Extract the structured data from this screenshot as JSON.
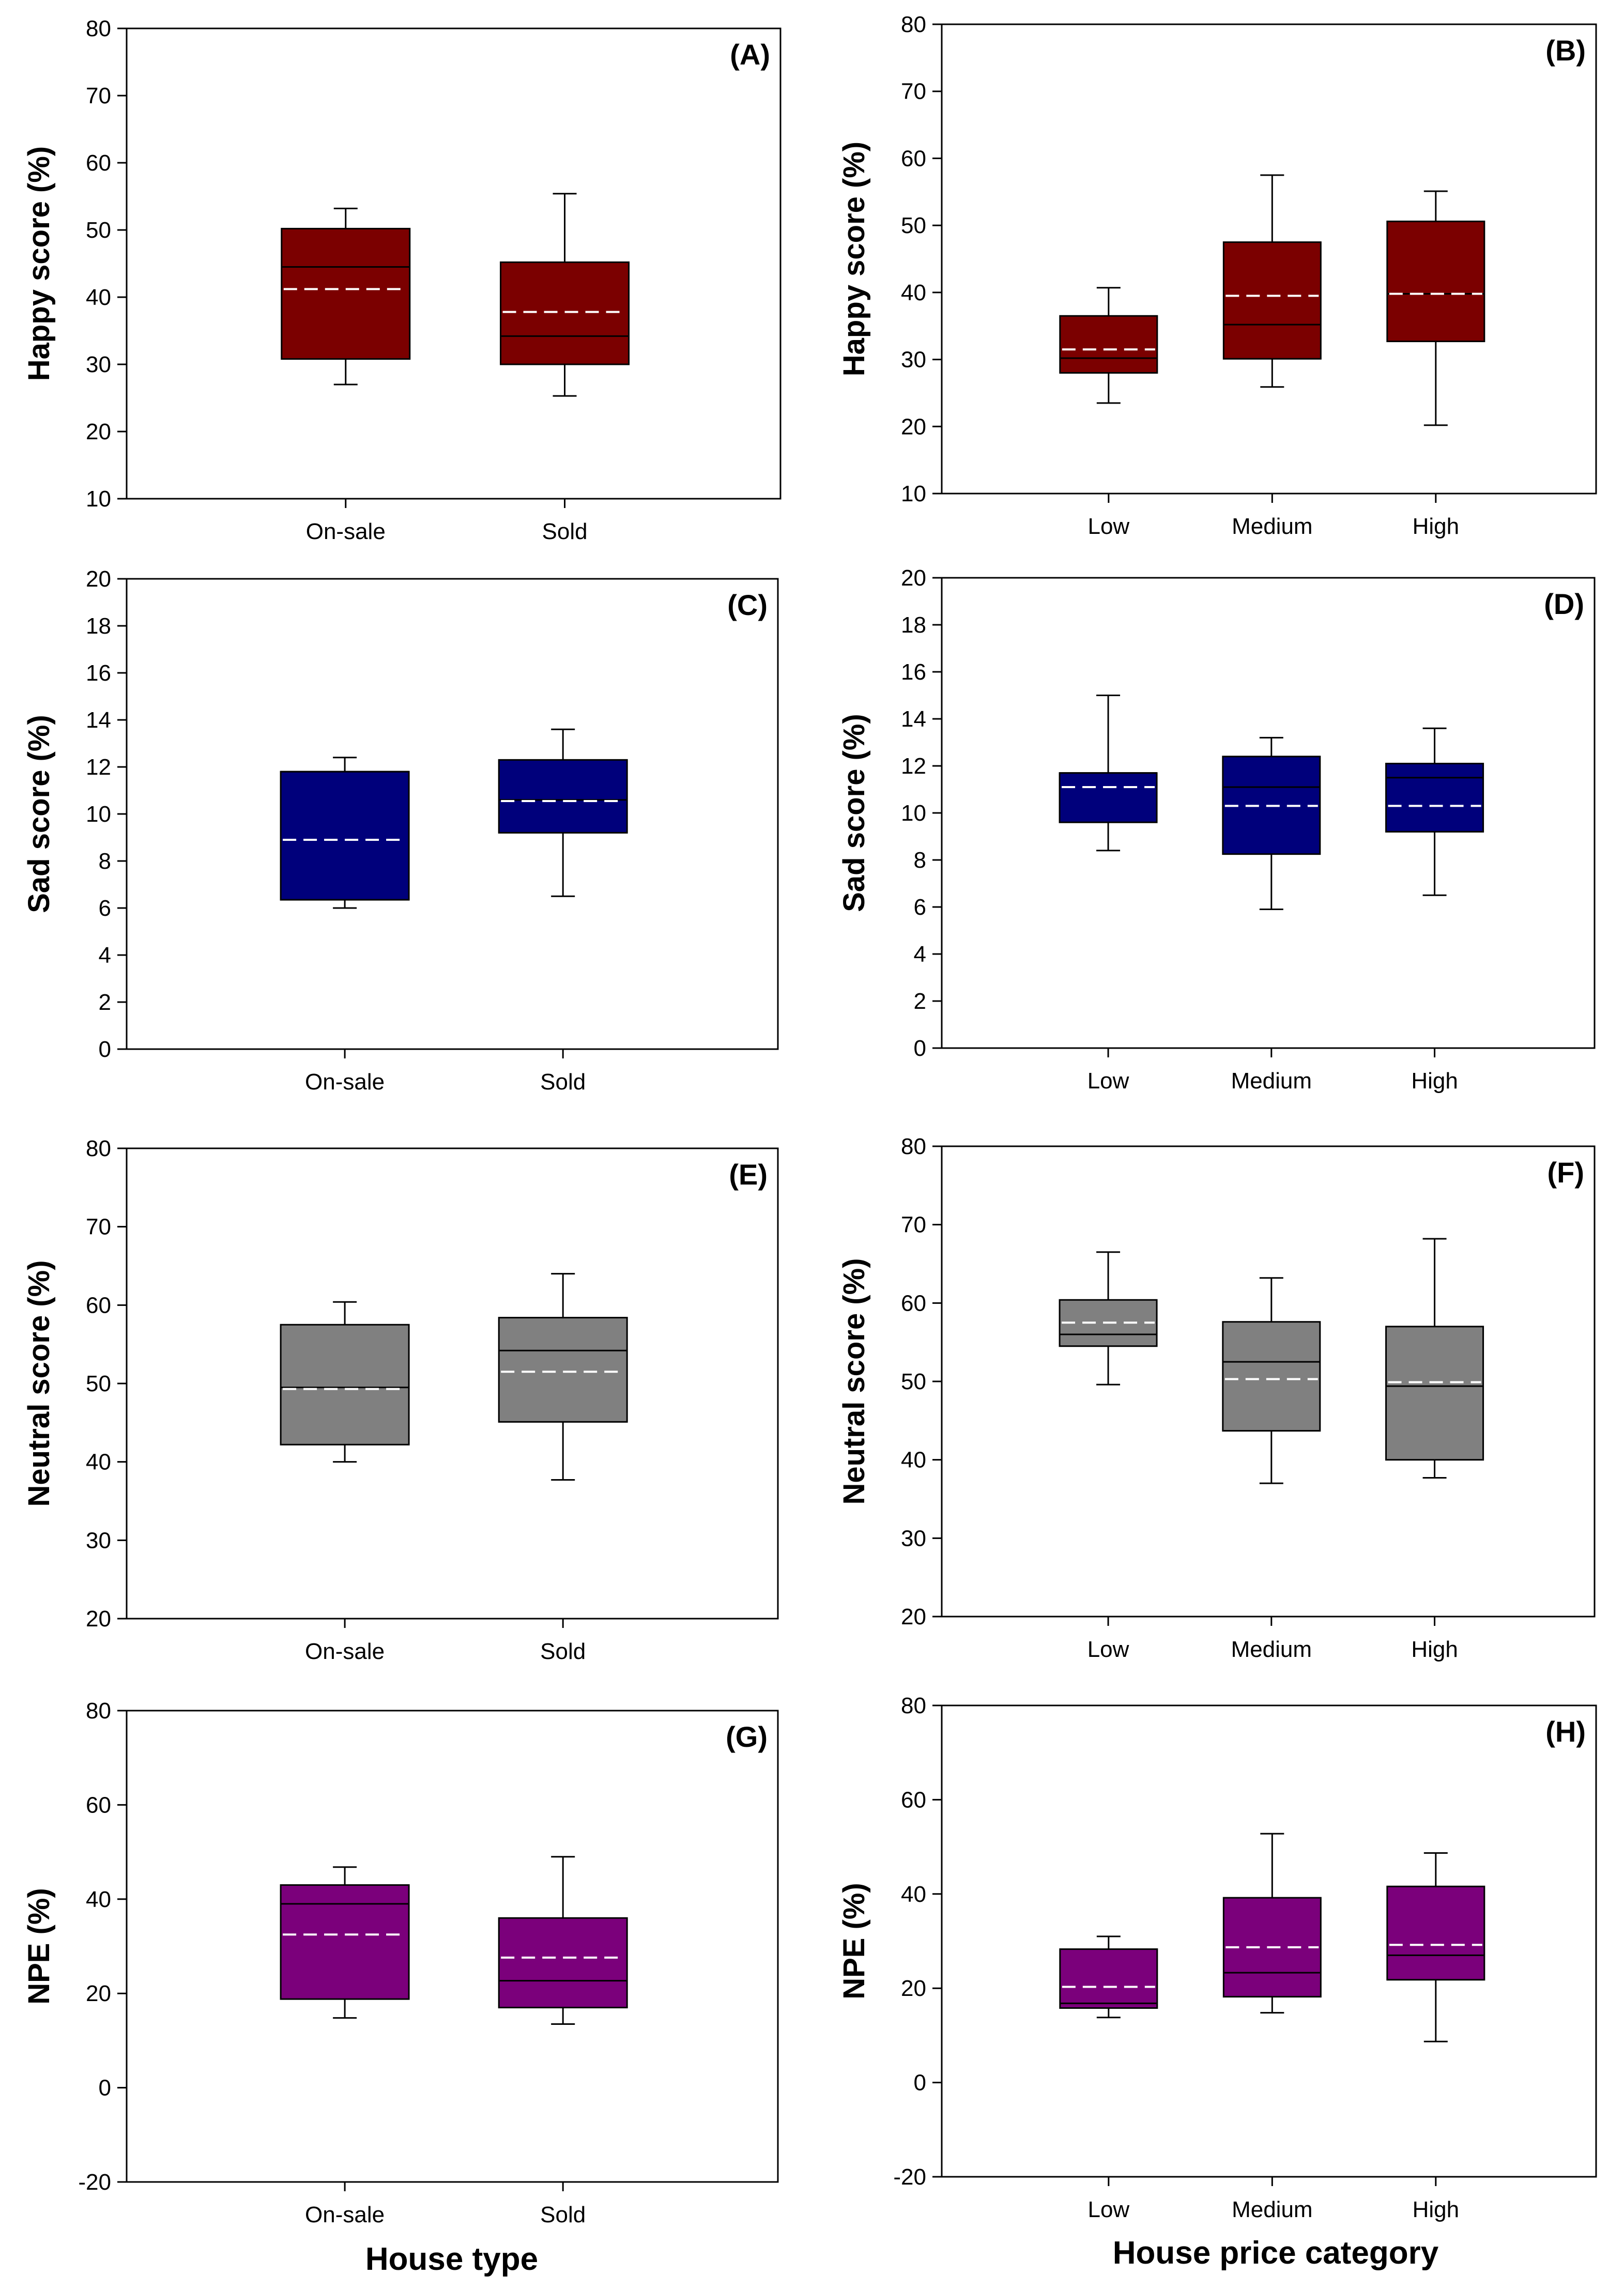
{
  "shared_xlabels": {
    "left": "House type",
    "right": "House price category"
  },
  "chart_data": [
    {
      "id": "A",
      "type": "box",
      "tag": "(A)",
      "ylabel": "Happy score (%)",
      "ylim": [
        10,
        80
      ],
      "yticks": [
        10,
        20,
        30,
        40,
        50,
        60,
        70,
        80
      ],
      "color": "#7b0000",
      "median_color": "#000000",
      "mean_color": "#ffffff",
      "categories": [
        "On-sale",
        "Sold"
      ],
      "boxes": [
        {
          "whisker_low": 27.0,
          "q1": 30.8,
          "median": 44.5,
          "mean": 41.2,
          "q3": 50.2,
          "whisker_high": 53.2
        },
        {
          "whisker_low": 25.3,
          "q1": 30.0,
          "median": 34.2,
          "mean": 37.8,
          "q3": 45.2,
          "whisker_high": 55.4
        }
      ]
    },
    {
      "id": "B",
      "type": "box",
      "tag": "(B)",
      "ylabel": "Happy score (%)",
      "ylim": [
        10,
        80
      ],
      "yticks": [
        10,
        20,
        30,
        40,
        50,
        60,
        70,
        80
      ],
      "color": "#7b0000",
      "median_color": "#000000",
      "mean_color": "#ffffff",
      "categories": [
        "Low",
        "Medium",
        "High"
      ],
      "boxes": [
        {
          "whisker_low": 23.5,
          "q1": 28.0,
          "median": 30.2,
          "mean": 31.5,
          "q3": 36.5,
          "whisker_high": 40.7
        },
        {
          "whisker_low": 25.9,
          "q1": 30.1,
          "median": 35.2,
          "mean": 39.5,
          "q3": 47.5,
          "whisker_high": 57.5
        },
        {
          "whisker_low": 20.2,
          "q1": 32.7,
          "median": 39.8,
          "mean": 39.8,
          "q3": 50.6,
          "whisker_high": 55.1
        }
      ]
    },
    {
      "id": "C",
      "type": "box",
      "tag": "(C)",
      "ylabel": "Sad score (%)",
      "ylim": [
        0,
        20
      ],
      "yticks": [
        0,
        2,
        4,
        6,
        8,
        10,
        12,
        14,
        16,
        18,
        20
      ],
      "color": "#00007b",
      "median_color": "#000000",
      "mean_color": "#ffffff",
      "categories": [
        "On-sale",
        "Sold"
      ],
      "boxes": [
        {
          "whisker_low": 6.0,
          "q1": 6.35,
          "median": 11.8,
          "mean": 8.9,
          "q3": 11.8,
          "whisker_high": 12.4
        },
        {
          "whisker_low": 6.5,
          "q1": 9.2,
          "median": 10.6,
          "mean": 10.55,
          "q3": 12.3,
          "whisker_high": 13.6
        }
      ]
    },
    {
      "id": "D",
      "type": "box",
      "tag": "(D)",
      "ylabel": "Sad score (%)",
      "ylim": [
        0,
        20
      ],
      "yticks": [
        0,
        2,
        4,
        6,
        8,
        10,
        12,
        14,
        16,
        18,
        20
      ],
      "color": "#00007b",
      "median_color": "#000000",
      "mean_color": "#ffffff",
      "categories": [
        "Low",
        "Medium",
        "High"
      ],
      "boxes": [
        {
          "whisker_low": 8.4,
          "q1": 9.6,
          "median": 11.7,
          "mean": 11.1,
          "q3": 11.7,
          "whisker_high": 15.0
        },
        {
          "whisker_low": 5.9,
          "q1": 8.25,
          "median": 11.1,
          "mean": 10.3,
          "q3": 12.4,
          "whisker_high": 13.2
        },
        {
          "whisker_low": 6.5,
          "q1": 9.2,
          "median": 11.5,
          "mean": 10.3,
          "q3": 12.1,
          "whisker_high": 13.6
        }
      ]
    },
    {
      "id": "E",
      "type": "box",
      "tag": "(E)",
      "ylabel": "Neutral score (%)",
      "ylim": [
        20,
        80
      ],
      "yticks": [
        20,
        30,
        40,
        50,
        60,
        70,
        80
      ],
      "color": "#808080",
      "median_color": "#000000",
      "mean_color": "#ffffff",
      "categories": [
        "On-sale",
        "Sold"
      ],
      "boxes": [
        {
          "whisker_low": 40.0,
          "q1": 42.2,
          "median": 49.5,
          "mean": 49.3,
          "q3": 57.5,
          "whisker_high": 60.4
        },
        {
          "whisker_low": 37.7,
          "q1": 45.1,
          "median": 54.2,
          "mean": 51.5,
          "q3": 58.4,
          "whisker_high": 64.0
        }
      ]
    },
    {
      "id": "F",
      "type": "box",
      "tag": "(F)",
      "ylabel": "Neutral score (%)",
      "ylim": [
        20,
        80
      ],
      "yticks": [
        20,
        30,
        40,
        50,
        60,
        70,
        80
      ],
      "color": "#808080",
      "median_color": "#000000",
      "mean_color": "#ffffff",
      "categories": [
        "Low",
        "Medium",
        "High"
      ],
      "boxes": [
        {
          "whisker_low": 49.6,
          "q1": 54.5,
          "median": 56.0,
          "mean": 57.5,
          "q3": 60.4,
          "whisker_high": 66.5
        },
        {
          "whisker_low": 37.0,
          "q1": 43.7,
          "median": 52.5,
          "mean": 50.3,
          "q3": 57.6,
          "whisker_high": 63.2
        },
        {
          "whisker_low": 37.7,
          "q1": 40.0,
          "median": 49.4,
          "mean": 49.9,
          "q3": 57.0,
          "whisker_high": 68.2
        }
      ]
    },
    {
      "id": "G",
      "type": "box",
      "tag": "(G)",
      "ylabel": "NPE (%)",
      "ylim": [
        -20,
        80
      ],
      "yticks": [
        -20,
        0,
        20,
        40,
        60,
        80
      ],
      "color": "#7b007b",
      "median_color": "#000000",
      "mean_color": "#ffffff",
      "categories": [
        "On-sale",
        "Sold"
      ],
      "boxes": [
        {
          "whisker_low": 14.8,
          "q1": 18.8,
          "median": 39.0,
          "mean": 32.5,
          "q3": 43.0,
          "whisker_high": 46.8
        },
        {
          "whisker_low": 13.5,
          "q1": 17.0,
          "median": 22.7,
          "mean": 27.6,
          "q3": 36.0,
          "whisker_high": 49.0
        }
      ]
    },
    {
      "id": "H",
      "type": "box",
      "tag": "(H)",
      "ylabel": "NPE (%)",
      "ylim": [
        -20,
        80
      ],
      "yticks": [
        -20,
        0,
        20,
        40,
        60,
        80
      ],
      "color": "#7b007b",
      "median_color": "#000000",
      "mean_color": "#ffffff",
      "categories": [
        "Low",
        "Medium",
        "High"
      ],
      "boxes": [
        {
          "whisker_low": 13.8,
          "q1": 15.8,
          "median": 16.8,
          "mean": 20.3,
          "q3": 28.3,
          "whisker_high": 31.0
        },
        {
          "whisker_low": 14.8,
          "q1": 18.2,
          "median": 23.3,
          "mean": 28.7,
          "q3": 39.2,
          "whisker_high": 52.8
        },
        {
          "whisker_low": 8.7,
          "q1": 21.8,
          "median": 27.0,
          "mean": 29.2,
          "q3": 41.6,
          "whisker_high": 48.7
        }
      ]
    }
  ]
}
